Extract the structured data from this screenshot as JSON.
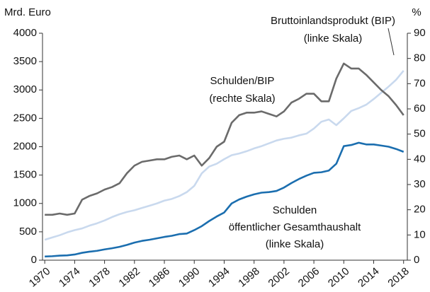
{
  "chart_data": {
    "type": "line",
    "y_label": "Mrd. Euro",
    "y2_label": "%",
    "x": [
      1970,
      1971,
      1972,
      1973,
      1974,
      1975,
      1976,
      1977,
      1978,
      1979,
      1980,
      1981,
      1982,
      1983,
      1984,
      1985,
      1986,
      1987,
      1988,
      1989,
      1990,
      1991,
      1992,
      1993,
      1994,
      1995,
      1996,
      1997,
      1998,
      1999,
      2000,
      2001,
      2002,
      2003,
      2004,
      2005,
      2006,
      2007,
      2008,
      2009,
      2010,
      2011,
      2012,
      2013,
      2014,
      2015,
      2016,
      2017,
      2018
    ],
    "xlim": [
      1969.7,
      2018.5
    ],
    "xticks": [
      1970,
      1974,
      1978,
      1982,
      1986,
      1990,
      1994,
      1998,
      2002,
      2006,
      2010,
      2014,
      2018
    ],
    "ylim": [
      0,
      4000
    ],
    "yticks": [
      0,
      500,
      1000,
      1500,
      2000,
      2500,
      3000,
      3500,
      4000
    ],
    "y2lim": [
      0,
      90
    ],
    "y2ticks": [
      0,
      10,
      20,
      30,
      40,
      50,
      60,
      70,
      80,
      90
    ],
    "series": [
      {
        "name": "Bruttoinlandsprodukt (BIP)",
        "color": "#c9d9ee",
        "values": [
          360,
          400,
          440,
          490,
          530,
          560,
          610,
          650,
          700,
          760,
          810,
          850,
          880,
          920,
          960,
          1000,
          1050,
          1080,
          1130,
          1200,
          1310,
          1530,
          1650,
          1700,
          1780,
          1850,
          1880,
          1920,
          1970,
          2010,
          2060,
          2110,
          2140,
          2160,
          2200,
          2230,
          2320,
          2440,
          2480,
          2380,
          2500,
          2630,
          2680,
          2740,
          2840,
          2950,
          3060,
          3180,
          3340
        ]
      },
      {
        "name": "Schulden/BIP",
        "color": "#6b6b6b",
        "axis": "y2",
        "values": [
          18,
          18,
          18.5,
          18,
          18.5,
          24,
          25.5,
          26.5,
          28,
          29,
          30.5,
          34.5,
          37.5,
          39,
          39.5,
          40,
          40,
          41,
          41.5,
          40,
          41.5,
          37.5,
          40.5,
          45,
          47,
          54.5,
          57.5,
          58.5,
          58.5,
          59,
          58,
          57,
          59,
          62.5,
          64,
          66,
          66,
          63,
          63,
          72,
          78,
          76,
          76,
          73.5,
          70.5,
          67.5,
          65,
          61.5,
          57.5
        ]
      },
      {
        "name": "Schulden öffentlicher Gesamthaushalt",
        "color": "#1b6eaf",
        "values": [
          65,
          70,
          80,
          85,
          100,
          130,
          150,
          165,
          190,
          210,
          235,
          270,
          310,
          340,
          360,
          385,
          410,
          430,
          460,
          470,
          530,
          600,
          690,
          770,
          840,
          1000,
          1070,
          1120,
          1160,
          1190,
          1200,
          1220,
          1280,
          1360,
          1430,
          1490,
          1540,
          1550,
          1580,
          1700,
          2010,
          2030,
          2070,
          2040,
          2040,
          2020,
          2000,
          1960,
          1910
        ]
      }
    ],
    "annotations": [
      {
        "lines": [
          "Bruttoinlandsprodukt (BIP)",
          "(linke Skala)"
        ]
      },
      {
        "lines": [
          "Schulden/BIP",
          "(rechte Skala)"
        ]
      },
      {
        "lines": [
          "Schulden",
          "öffentlicher Gesamthaushalt",
          "(linke Skala)"
        ]
      }
    ]
  }
}
